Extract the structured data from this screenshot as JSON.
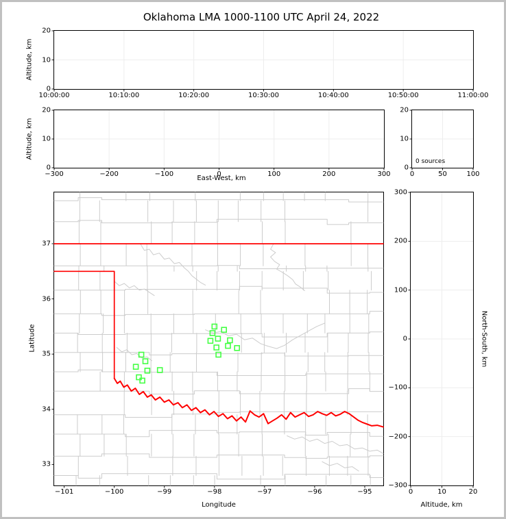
{
  "title": "Oklahoma LMA 1000-1100 UTC April 24, 2022",
  "colors": {
    "state_border": "#ff0000",
    "stations": "#44ff44",
    "counties": "#cccccc",
    "grid": "#ededed",
    "spine": "#000000",
    "figure_border": "#c0c0c0"
  },
  "chart_data": [
    {
      "id": "time_height",
      "type": "scatter",
      "ylabel": "Altitude, km",
      "xlabel": "",
      "xlim": [
        0,
        3600
      ],
      "ylim": [
        0,
        20
      ],
      "xtick_pos": [
        0,
        600,
        1200,
        1800,
        2400,
        3000,
        3600
      ],
      "xtick_labels": [
        "10:00:00",
        "10:10:00",
        "10:20:00",
        "10:30:00",
        "10:40:00",
        "10:50:00",
        "11:00:00"
      ],
      "ytick_pos": [
        0,
        10,
        20
      ],
      "ytick_labels": [
        "0",
        "10",
        "20"
      ],
      "grid": true,
      "points": []
    },
    {
      "id": "ew_height",
      "type": "scatter",
      "ylabel": "Altitude, km",
      "xlabel": "East-West, km",
      "xlim": [
        -300,
        300
      ],
      "ylim": [
        0,
        20
      ],
      "xtick_pos": [
        -300,
        -200,
        -100,
        0,
        100,
        200,
        300
      ],
      "xtick_labels": [
        "−300",
        "−200",
        "−100",
        "0",
        "100",
        "200",
        "300"
      ],
      "ytick_pos": [
        0,
        10,
        20
      ],
      "ytick_labels": [
        "0",
        "10",
        "20"
      ],
      "grid": true,
      "points": []
    },
    {
      "id": "src_hist",
      "type": "histogram",
      "annotation": "0 sources",
      "xlim": [
        0,
        100
      ],
      "ylim": [
        0,
        20
      ],
      "xtick_pos": [
        0,
        50,
        100
      ],
      "xtick_labels": [
        "0",
        "50",
        "100"
      ],
      "ytick_pos": [
        0,
        10,
        20
      ],
      "ytick_labels": [
        "0",
        "10",
        "20"
      ],
      "grid": true,
      "values": []
    },
    {
      "id": "plan_map",
      "type": "map",
      "ylabel": "Latitude",
      "xlabel": "Longitude",
      "xlim": [
        -101.2,
        -94.63
      ],
      "ylim": [
        32.62,
        37.93
      ],
      "xtick_pos": [
        -101,
        -100,
        -99,
        -98,
        -97,
        -96,
        -95
      ],
      "xtick_labels": [
        "−101",
        "−100",
        "−99",
        "−98",
        "−97",
        "−96",
        "−95"
      ],
      "ytick_pos": [
        33,
        34,
        35,
        36,
        37
      ],
      "ytick_labels": [
        "33",
        "34",
        "35",
        "36",
        "37"
      ],
      "grid": false,
      "stations": [
        [
          -98.0,
          35.5
        ],
        [
          -97.81,
          35.44
        ],
        [
          -98.04,
          35.38
        ],
        [
          -97.93,
          35.28
        ],
        [
          -98.08,
          35.24
        ],
        [
          -97.69,
          35.25
        ],
        [
          -97.73,
          35.15
        ],
        [
          -97.96,
          35.12
        ],
        [
          -97.55,
          35.11
        ],
        [
          -97.92,
          34.99
        ],
        [
          -99.46,
          34.99
        ],
        [
          -99.38,
          34.87
        ],
        [
          -99.57,
          34.77
        ],
        [
          -99.34,
          34.7
        ],
        [
          -99.09,
          34.71
        ],
        [
          -99.51,
          34.58
        ],
        [
          -99.44,
          34.52
        ]
      ],
      "state_border": [
        [
          [
            -101.2,
            37.0
          ],
          [
            -94.63,
            37.0
          ]
        ],
        [
          [
            -101.2,
            36.5
          ],
          [
            -100.0,
            36.5
          ],
          [
            -100.0,
            34.56
          ]
        ],
        [
          [
            -100.0,
            34.56
          ],
          [
            -99.94,
            34.47
          ],
          [
            -99.88,
            34.51
          ],
          [
            -99.81,
            34.4
          ],
          [
            -99.74,
            34.44
          ],
          [
            -99.66,
            34.33
          ],
          [
            -99.58,
            34.38
          ],
          [
            -99.5,
            34.27
          ],
          [
            -99.42,
            34.32
          ],
          [
            -99.34,
            34.22
          ],
          [
            -99.26,
            34.26
          ],
          [
            -99.18,
            34.17
          ],
          [
            -99.09,
            34.22
          ],
          [
            -99.0,
            34.13
          ],
          [
            -98.91,
            34.17
          ],
          [
            -98.82,
            34.08
          ],
          [
            -98.73,
            34.12
          ],
          [
            -98.64,
            34.03
          ],
          [
            -98.55,
            34.08
          ],
          [
            -98.46,
            33.98
          ],
          [
            -98.37,
            34.03
          ],
          [
            -98.28,
            33.94
          ],
          [
            -98.19,
            33.99
          ],
          [
            -98.1,
            33.9
          ],
          [
            -98.01,
            33.96
          ],
          [
            -97.92,
            33.87
          ],
          [
            -97.83,
            33.92
          ],
          [
            -97.74,
            33.83
          ],
          [
            -97.65,
            33.88
          ],
          [
            -97.56,
            33.79
          ],
          [
            -97.47,
            33.86
          ],
          [
            -97.38,
            33.77
          ],
          [
            -97.29,
            33.97
          ],
          [
            -97.2,
            33.9
          ],
          [
            -97.11,
            33.86
          ],
          [
            -97.02,
            33.92
          ],
          [
            -96.93,
            33.74
          ],
          [
            -96.84,
            33.79
          ],
          [
            -96.75,
            33.84
          ],
          [
            -96.66,
            33.9
          ],
          [
            -96.57,
            33.82
          ],
          [
            -96.48,
            33.94
          ],
          [
            -96.39,
            33.86
          ],
          [
            -96.3,
            33.9
          ],
          [
            -96.21,
            33.94
          ],
          [
            -96.12,
            33.87
          ],
          [
            -96.03,
            33.9
          ],
          [
            -95.94,
            33.96
          ],
          [
            -95.85,
            33.92
          ],
          [
            -95.76,
            33.89
          ],
          [
            -95.67,
            33.94
          ],
          [
            -95.58,
            33.88
          ],
          [
            -95.49,
            33.91
          ],
          [
            -95.4,
            33.96
          ],
          [
            -95.31,
            33.92
          ],
          [
            -95.22,
            33.86
          ],
          [
            -95.13,
            33.8
          ],
          [
            -95.04,
            33.76
          ],
          [
            -94.95,
            33.73
          ],
          [
            -94.86,
            33.7
          ],
          [
            -94.75,
            33.71
          ],
          [
            -94.63,
            33.68
          ]
        ]
      ],
      "rivers": [
        [
          [
            -99.48,
            37.0
          ],
          [
            -99.4,
            36.88
          ],
          [
            -99.3,
            36.9
          ],
          [
            -99.22,
            36.8
          ],
          [
            -99.1,
            36.83
          ],
          [
            -99.0,
            36.72
          ],
          [
            -98.9,
            36.74
          ],
          [
            -98.8,
            36.64
          ],
          [
            -98.7,
            36.66
          ],
          [
            -98.6,
            36.56
          ],
          [
            -98.52,
            36.5
          ],
          [
            -98.45,
            36.42
          ],
          [
            -98.38,
            36.37
          ],
          [
            -98.28,
            36.3
          ],
          [
            -98.18,
            36.25
          ]
        ],
        [
          [
            -96.82,
            37.0
          ],
          [
            -96.88,
            36.9
          ],
          [
            -96.78,
            36.84
          ],
          [
            -96.88,
            36.76
          ],
          [
            -96.8,
            36.68
          ],
          [
            -96.7,
            36.62
          ],
          [
            -96.76,
            36.54
          ],
          [
            -96.64,
            36.48
          ],
          [
            -96.54,
            36.42
          ],
          [
            -96.44,
            36.35
          ],
          [
            -96.38,
            36.27
          ],
          [
            -96.28,
            36.21
          ],
          [
            -96.2,
            36.15
          ]
        ],
        [
          [
            -100.0,
            36.32
          ],
          [
            -99.9,
            36.24
          ],
          [
            -99.8,
            36.28
          ],
          [
            -99.7,
            36.2
          ],
          [
            -99.6,
            36.24
          ],
          [
            -99.5,
            36.16
          ],
          [
            -99.4,
            36.18
          ],
          [
            -99.3,
            36.12
          ],
          [
            -99.2,
            36.06
          ]
        ],
        [
          [
            -98.18,
            35.44
          ],
          [
            -98.02,
            35.38
          ],
          [
            -97.88,
            35.41
          ],
          [
            -97.72,
            35.33
          ],
          [
            -97.56,
            35.36
          ],
          [
            -97.4,
            35.26
          ],
          [
            -97.24,
            35.29
          ],
          [
            -97.08,
            35.19
          ],
          [
            -96.92,
            35.14
          ],
          [
            -96.76,
            35.1
          ],
          [
            -96.6,
            35.16
          ],
          [
            -96.44,
            35.26
          ],
          [
            -96.28,
            35.34
          ],
          [
            -96.12,
            35.42
          ],
          [
            -95.96,
            35.5
          ],
          [
            -95.8,
            35.56
          ]
        ],
        [
          [
            -99.95,
            35.12
          ],
          [
            -99.85,
            35.04
          ],
          [
            -99.75,
            35.08
          ],
          [
            -99.65,
            34.99
          ],
          [
            -99.55,
            35.01
          ],
          [
            -99.45,
            34.93
          ],
          [
            -99.35,
            34.95
          ],
          [
            -99.25,
            34.88
          ]
        ],
        [
          [
            -96.55,
            33.52
          ],
          [
            -96.4,
            33.46
          ],
          [
            -96.25,
            33.5
          ],
          [
            -96.1,
            33.42
          ],
          [
            -95.95,
            33.46
          ],
          [
            -95.8,
            33.38
          ],
          [
            -95.65,
            33.42
          ],
          [
            -95.5,
            33.34
          ],
          [
            -95.35,
            33.36
          ],
          [
            -95.2,
            33.28
          ],
          [
            -95.05,
            33.3
          ],
          [
            -94.9,
            33.24
          ],
          [
            -94.75,
            33.26
          ],
          [
            -94.63,
            33.2
          ]
        ],
        [
          [
            -95.85,
            33.05
          ],
          [
            -95.7,
            32.98
          ],
          [
            -95.55,
            33.02
          ],
          [
            -95.4,
            32.94
          ],
          [
            -95.25,
            32.96
          ],
          [
            -95.12,
            32.88
          ]
        ]
      ]
    },
    {
      "id": "ns_height",
      "type": "scatter",
      "ylabel": "North-South, km",
      "xlabel": "Altitude, km",
      "xlim": [
        0,
        20
      ],
      "ylim": [
        -300,
        300
      ],
      "xtick_pos": [
        0,
        10,
        20
      ],
      "xtick_labels": [
        "0",
        "10",
        "20"
      ],
      "ytick_pos": [
        -300,
        -200,
        -100,
        0,
        100,
        200,
        300
      ],
      "ytick_labels": [
        "−300",
        "−200",
        "−100",
        "0",
        "100",
        "200",
        "300"
      ],
      "grid": true,
      "points": []
    }
  ],
  "county_grid": {
    "seed": 9,
    "rows": [
      37.78,
      37.4,
      36.6,
      36.16,
      35.73,
      35.38,
      35.03,
      34.68,
      34.33,
      33.9,
      33.55,
      33.15,
      32.8
    ],
    "cols": [
      -100.72,
      -100.25,
      -99.78,
      -99.3,
      -98.85,
      -98.4,
      -97.95,
      -97.5,
      -97.05,
      -96.6,
      -96.18,
      -95.75,
      -95.32,
      -94.9
    ],
    "bands": [
      37.93,
      37.78,
      37.4,
      37.0,
      36.6,
      36.5,
      36.16,
      35.73,
      35.38,
      35.03,
      34.68,
      34.33,
      33.9,
      33.55,
      33.15,
      32.8,
      32.62
    ]
  }
}
